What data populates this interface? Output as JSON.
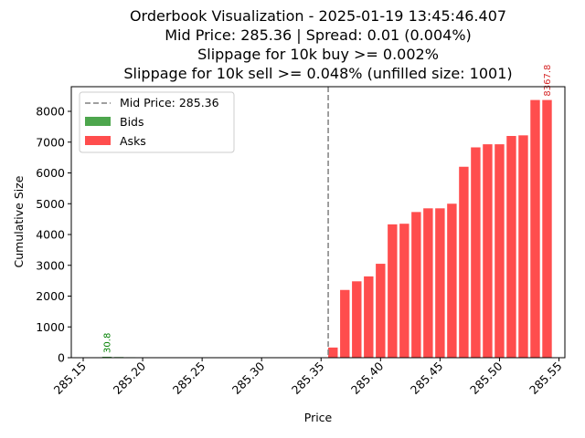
{
  "chart_data": {
    "type": "bar",
    "title_lines": [
      "Orderbook Visualization - 2025-01-19 13:45:46.407",
      "Mid Price: 285.36 | Spread: 0.01 (0.004%)",
      "Slippage for 10k buy >= 0.002%",
      "Slippage for 10k sell >= 0.048% (unfilled size: 1001)"
    ],
    "xlabel": "Price",
    "ylabel": "Cumulative Size",
    "xlim": [
      285.14,
      285.555
    ],
    "ylim": [
      0,
      8800
    ],
    "xticks": [
      285.15,
      285.2,
      285.25,
      285.3,
      285.35,
      285.4,
      285.45,
      285.5,
      285.55
    ],
    "xtick_labels": [
      "285.15",
      "285.20",
      "285.25",
      "285.30",
      "285.35",
      "285.40",
      "285.45",
      "285.50",
      "285.55"
    ],
    "yticks": [
      0,
      1000,
      2000,
      3000,
      4000,
      5000,
      6000,
      7000,
      8000
    ],
    "ytick_labels": [
      "0",
      "1000",
      "2000",
      "3000",
      "4000",
      "5000",
      "6000",
      "7000",
      "8000"
    ],
    "bar_width": 0.008,
    "mid_price": 285.356,
    "legend": [
      "Mid Price: 285.36",
      "Bids",
      "Asks"
    ],
    "colors": {
      "bids": "#4da64d",
      "asks": "#ff4d4d",
      "mid": "#808080",
      "bid_label": "#008000",
      "ask_label": "#d62728"
    },
    "bids": {
      "name": "Bids",
      "x": [
        285.17,
        285.18,
        285.19,
        285.2,
        285.21,
        285.22,
        285.23,
        285.24,
        285.25,
        285.26,
        285.27,
        285.28,
        285.29,
        285.3,
        285.31,
        285.32,
        285.33,
        285.34
      ],
      "values": [
        30.8,
        22,
        16,
        10,
        7,
        5,
        4,
        3,
        3,
        2,
        2,
        2,
        2,
        2,
        1,
        1,
        1,
        1
      ]
    },
    "asks": {
      "name": "Asks",
      "x": [
        285.36,
        285.37,
        285.38,
        285.39,
        285.4,
        285.41,
        285.42,
        285.43,
        285.44,
        285.45,
        285.46,
        285.47,
        285.48,
        285.49,
        285.5,
        285.51,
        285.52,
        285.53,
        285.54
      ],
      "values": [
        330,
        2200,
        2480,
        2640,
        3050,
        4330,
        4350,
        4730,
        4850,
        4850,
        5000,
        6200,
        6830,
        6930,
        6930,
        7200,
        7220,
        8367.8,
        8367.8
      ]
    },
    "annotations": [
      {
        "series": "bids",
        "index": 0,
        "text": "30.8"
      },
      {
        "series": "asks",
        "index": 18,
        "text": "8367.8"
      }
    ]
  }
}
